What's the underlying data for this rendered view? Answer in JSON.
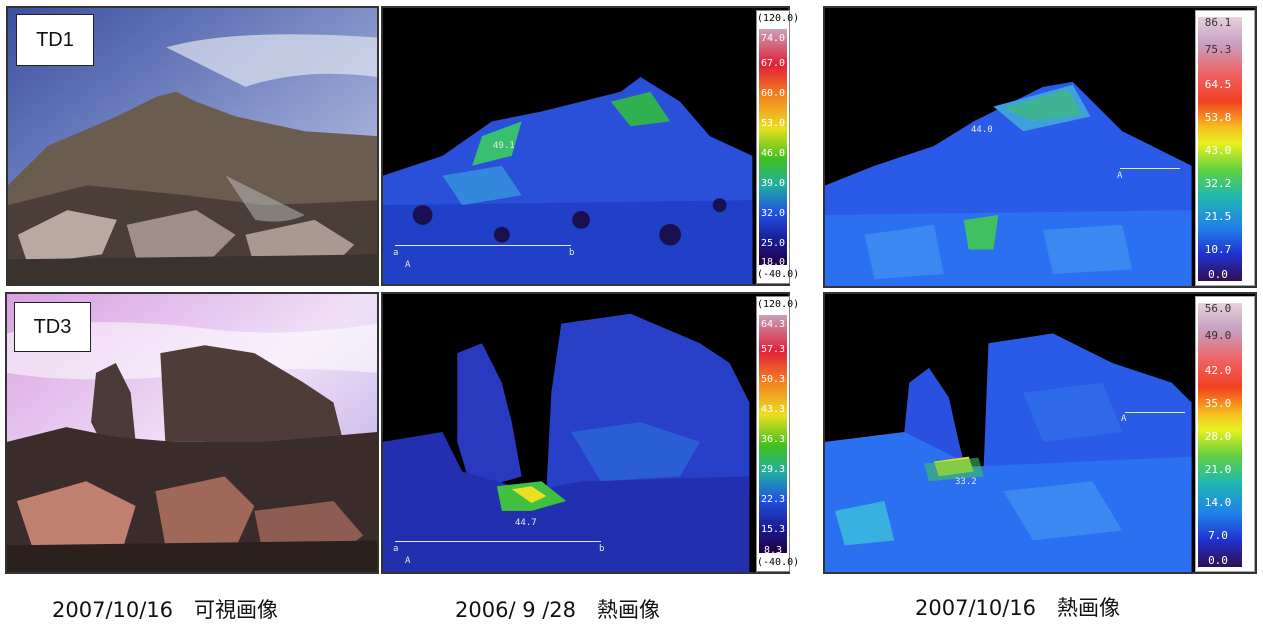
{
  "labels": {
    "td1": "TD1",
    "td3": "TD3"
  },
  "captions": {
    "visible": "2007/10/16　可視画像",
    "thermal_2006": "2006/ 9 /28　熱画像",
    "thermal_2007": "2007/10/16　熱画像"
  },
  "scale_2006_td1": {
    "top": "(120.0)",
    "bottom": "(-40.0)",
    "ticks": [
      "74.0",
      "67.0",
      "60.0",
      "53.0",
      "46.0",
      "39.0",
      "32.0",
      "25.0",
      "18.0"
    ]
  },
  "scale_2006_td3": {
    "top": "(120.0)",
    "bottom": "(-40.0)",
    "ticks": [
      "64.3",
      "57.3",
      "50.3",
      "43.3",
      "36.3",
      "29.3",
      "22.3",
      "15.3",
      "8.3"
    ]
  },
  "scale_2007_td1": {
    "ticks": [
      "86.1",
      "75.3",
      "64.5",
      "53.8",
      "43.0",
      "32.2",
      "21.5",
      "10.7",
      "0.0"
    ]
  },
  "scale_2007_td3": {
    "ticks": [
      "56.0",
      "49.0",
      "42.0",
      "35.0",
      "28.0",
      "21.0",
      "14.0",
      "7.0",
      "0.0"
    ]
  },
  "overlays": {
    "td1_2006_temp": "49.1",
    "td1_2006_a1": "a",
    "td1_2006_b": "b",
    "td1_2006_A": "A",
    "td1_2007_temp": "44.0",
    "td1_2007_A": "A",
    "td3_2006_temp": "44.7",
    "td3_2006_a": "a",
    "td3_2006_b": "b",
    "td3_2006_A": "A",
    "td3_2007_temp": "33.2",
    "td3_2007_A": "A"
  },
  "colors": {
    "scale_gradient": [
      "#c9a0b8",
      "#e0203a",
      "#f58020",
      "#e8e020",
      "#40c020",
      "#20b0a0",
      "#2050e0",
      "#1a1a90",
      "#200040"
    ]
  }
}
